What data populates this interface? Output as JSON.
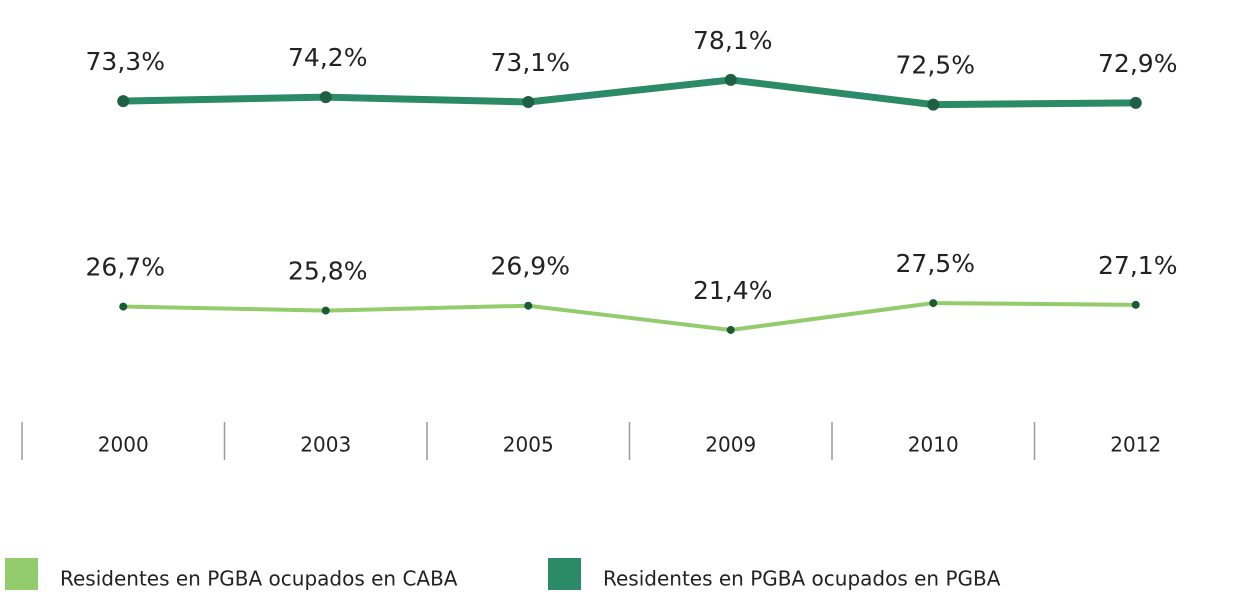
{
  "chart_data": {
    "type": "line",
    "categories": [
      "2000",
      "2003",
      "2005",
      "2009",
      "2010",
      "2012"
    ],
    "series": [
      {
        "name": "Residentes en PGBA ocupados en CABA",
        "color": "#93cc6c",
        "marker_color": "#1b5a34",
        "values": [
          26.7,
          25.8,
          26.9,
          21.4,
          27.5,
          27.1
        ],
        "value_labels": [
          "26,7%",
          "25,8%",
          "26,9%",
          "21,4%",
          "27,5%",
          "27,1%"
        ]
      },
      {
        "name": "Residentes en PGBA ocupados en PGBA",
        "color": "#2b8a68",
        "marker_color": "#1f5f43",
        "values": [
          73.3,
          74.2,
          73.1,
          78.1,
          72.5,
          72.9
        ],
        "value_labels": [
          "73,3%",
          "74,2%",
          "73,1%",
          "78,1%",
          "72,5%",
          "72,9%"
        ]
      }
    ],
    "ylim": [
      15,
      85
    ]
  }
}
